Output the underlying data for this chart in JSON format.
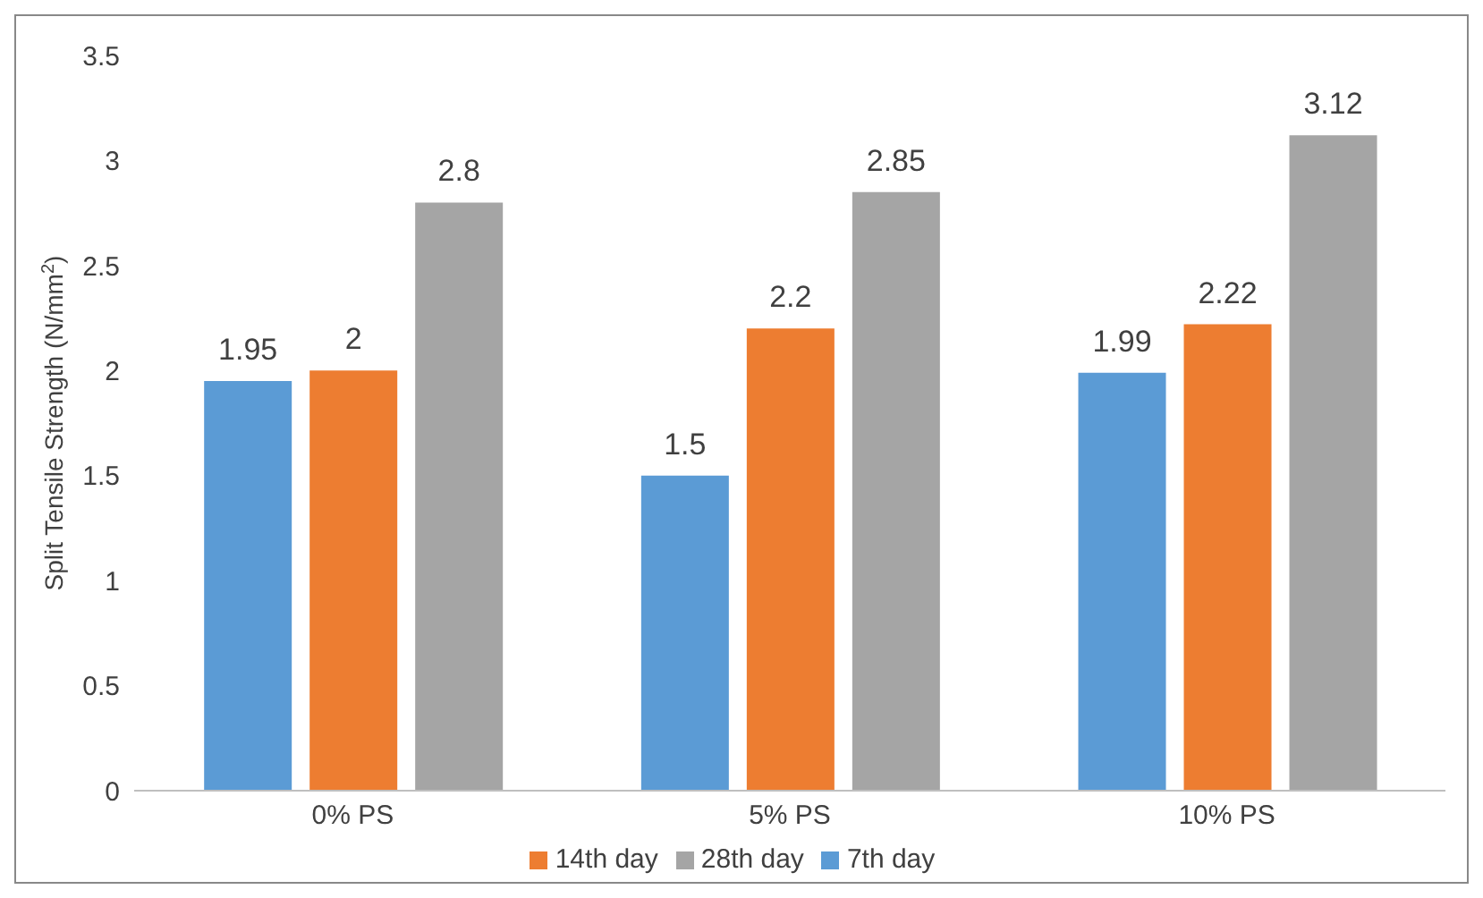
{
  "chart_data": {
    "type": "bar",
    "ylabel": "Split Tensile Strength (N/mm$^{2}$)",
    "categories": [
      "0% PS",
      "5% PS",
      "10% PS"
    ],
    "series": [
      {
        "name": "7th day",
        "color": "#5b9bd5",
        "values": [
          1.95,
          1.5,
          1.99
        ]
      },
      {
        "name": "14th day",
        "color": "#ed7d31",
        "values": [
          2,
          2.2,
          2.22
        ]
      },
      {
        "name": "28th day",
        "color": "#a5a5a5",
        "values": [
          2.8,
          2.85,
          3.12
        ]
      }
    ],
    "ylim": [
      0,
      3.5
    ],
    "yticks": [
      0,
      0.5,
      1,
      1.5,
      2,
      2.5,
      3,
      3.5
    ],
    "data_labels": true,
    "legend": "bottom"
  }
}
